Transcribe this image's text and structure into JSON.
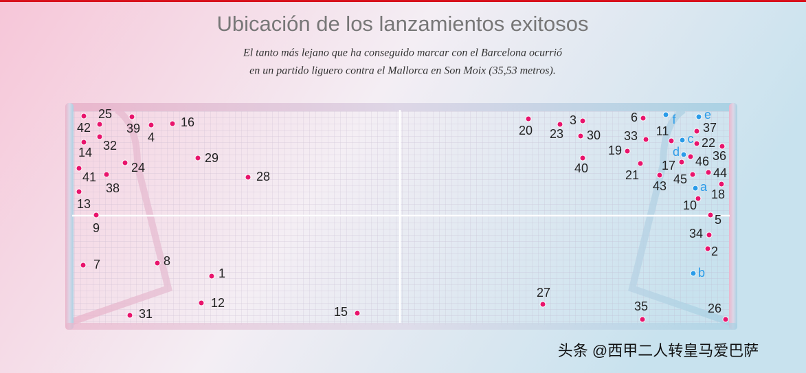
{
  "header": {
    "title": "Ubicación de los lanzamientos exitosos",
    "subtitle_lines": [
      "El tanto más lejano que ha conseguido marcar con el Barcelona ocurrió",
      "en un partido liguero contra el Mallorca en Son Moix (35,53 metros)."
    ]
  },
  "markers": [
    {
      "label": "42",
      "color": "#e8146c"
    },
    {
      "label": "25",
      "color": "#e8146c"
    },
    {
      "label": "39",
      "color": "#e8146c"
    },
    {
      "label": "4",
      "color": "#e8146c"
    },
    {
      "label": "16",
      "color": "#e8146c"
    },
    {
      "label": "32",
      "color": "#e8146c"
    },
    {
      "label": "14",
      "color": "#e8146c"
    },
    {
      "label": "24",
      "color": "#e8146c"
    },
    {
      "label": "29",
      "color": "#e8146c"
    },
    {
      "label": "41",
      "color": "#e8146c"
    },
    {
      "label": "38",
      "color": "#e8146c"
    },
    {
      "label": "28",
      "color": "#e8146c"
    },
    {
      "label": "13",
      "color": "#e8146c"
    },
    {
      "label": "9",
      "color": "#e8146c"
    },
    {
      "label": "7",
      "color": "#e8146c"
    },
    {
      "label": "8",
      "color": "#e8146c"
    },
    {
      "label": "1",
      "color": "#e8146c"
    },
    {
      "label": "12",
      "color": "#e8146c"
    },
    {
      "label": "31",
      "color": "#e8146c"
    },
    {
      "label": "15",
      "color": "#e8146c"
    },
    {
      "label": "20",
      "color": "#e8146c"
    },
    {
      "label": "3",
      "color": "#e8146c"
    },
    {
      "label": "23",
      "color": "#e8146c"
    },
    {
      "label": "30",
      "color": "#e8146c"
    },
    {
      "label": "6",
      "color": "#e8146c"
    },
    {
      "label": "33",
      "color": "#e8146c"
    },
    {
      "label": "11",
      "color": "#e8146c"
    },
    {
      "label": "37",
      "color": "#e8146c"
    },
    {
      "label": "22",
      "color": "#e8146c"
    },
    {
      "label": "36",
      "color": "#e8146c"
    },
    {
      "label": "19",
      "color": "#e8146c"
    },
    {
      "label": "40",
      "color": "#e8146c"
    },
    {
      "label": "21",
      "color": "#e8146c"
    },
    {
      "label": "17",
      "color": "#e8146c"
    },
    {
      "label": "46",
      "color": "#e8146c"
    },
    {
      "label": "44",
      "color": "#e8146c"
    },
    {
      "label": "45",
      "color": "#e8146c"
    },
    {
      "label": "43",
      "color": "#e8146c"
    },
    {
      "label": "18",
      "color": "#e8146c"
    },
    {
      "label": "10",
      "color": "#e8146c"
    },
    {
      "label": "5",
      "color": "#e8146c"
    },
    {
      "label": "34",
      "color": "#e8146c"
    },
    {
      "label": "2",
      "color": "#e8146c"
    },
    {
      "label": "27",
      "color": "#e8146c"
    },
    {
      "label": "35",
      "color": "#e8146c"
    },
    {
      "label": "26",
      "color": "#e8146c"
    },
    {
      "label": "f",
      "color": "#2a9be8"
    },
    {
      "label": "e",
      "color": "#2a9be8"
    },
    {
      "label": "c",
      "color": "#2a9be8"
    },
    {
      "label": "d",
      "color": "#2a9be8"
    },
    {
      "label": "a",
      "color": "#2a9be8"
    },
    {
      "label": "b",
      "color": "#2a9be8"
    }
  ],
  "watermark": "头条 @西甲二人转皇马爱巴萨"
}
